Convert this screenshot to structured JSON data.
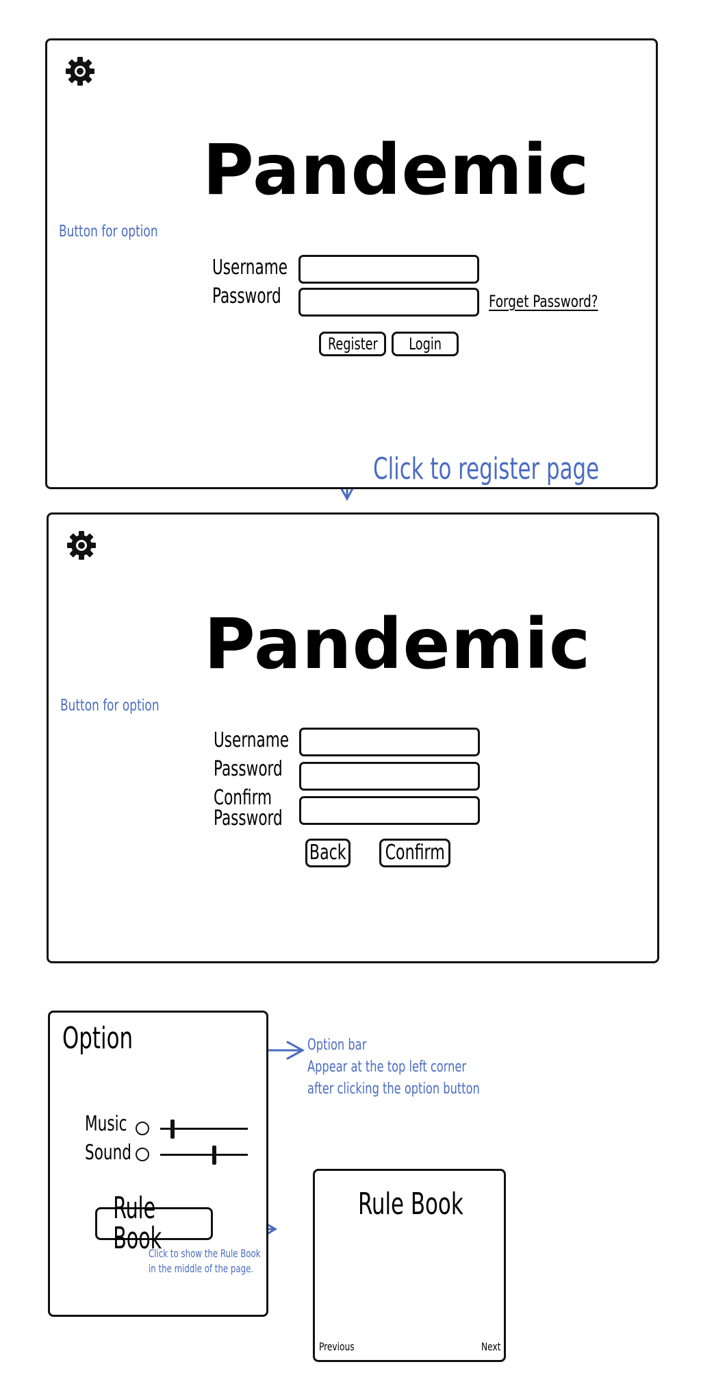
{
  "login_screen": {
    "title": "Pandemic",
    "username_label": "Username",
    "password_label": "Password",
    "forget_password": "Forget Password?",
    "register_button": "Register",
    "login_button": "Login",
    "option_annotation": "Button for option",
    "register_annotation": "Click to register page"
  },
  "register_screen": {
    "title": "Pandemic",
    "username_label": "Username",
    "password_label": "Password",
    "confirm_label_line1": "Confirm",
    "confirm_label_line2": "Password",
    "back_button": "Back",
    "confirm_button": "Confirm",
    "option_annotation": "Button for option"
  },
  "option_bar": {
    "title": "Option",
    "music_label": "Music",
    "sound_label": "Sound",
    "music_level": 0.12,
    "sound_level": 0.62,
    "rule_book_button": "Rule Book",
    "annotation_line1": "Option bar",
    "annotation_line2": "Appear at the top left corner",
    "annotation_line3": "after clicking the option button",
    "rule_book_annotation_line1": "Click to show the Rule Book",
    "rule_book_annotation_line2": "in the middle of the page."
  },
  "rule_book_popup": {
    "title": "Rule Book",
    "previous_button": "Previous",
    "next_button": "Next"
  },
  "colors": {
    "annotation": "#4a6cc2",
    "outline": "#111111"
  },
  "icons": {
    "settings": "gear-icon"
  }
}
